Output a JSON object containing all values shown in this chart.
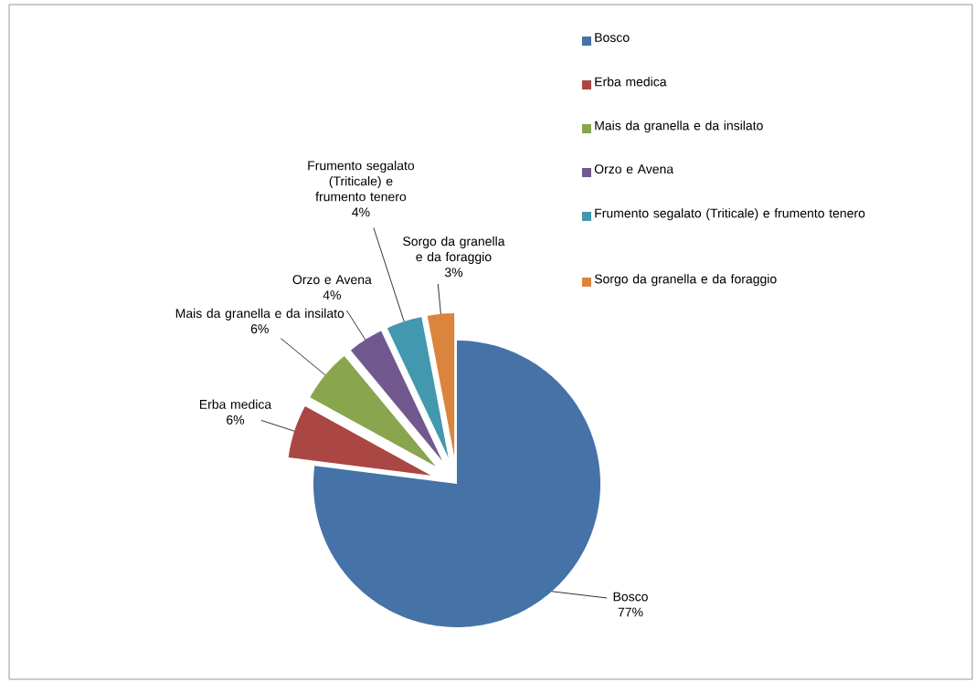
{
  "chart_data": {
    "type": "pie",
    "categories": [
      "Bosco",
      "Erba medica",
      "Mais da granella e da insilato",
      "Orzo e Avena",
      "Frumento segalato (Triticale) e frumento tenero",
      "Sorgo da granella e da foraggio"
    ],
    "values": [
      77,
      6,
      6,
      4,
      4,
      3
    ],
    "value_labels": [
      "77%",
      "6%",
      "6%",
      "4%",
      "4%",
      "3%"
    ],
    "colors": [
      "#4572a7",
      "#aa4643",
      "#89a54e",
      "#71588f",
      "#4198af",
      "#db843d"
    ],
    "legend": "right"
  }
}
